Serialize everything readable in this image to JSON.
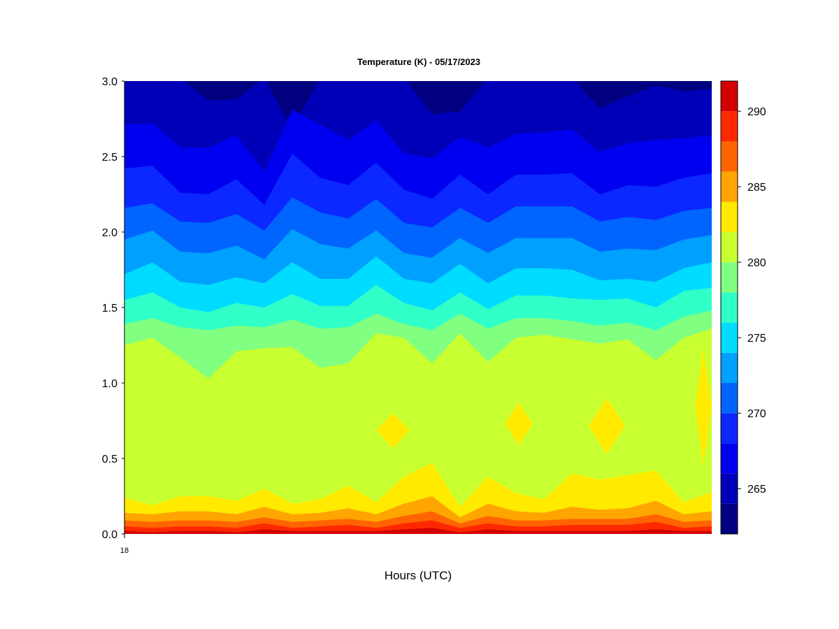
{
  "chart_data": {
    "type": "heatmap",
    "subtype": "filled-contour",
    "title": "Temperature (K) - 05/17/2023",
    "xlabel": "Hours (UTC)",
    "ylabel": "",
    "x_tick_labels": [
      "18"
    ],
    "y_ticks": [
      0.0,
      0.5,
      1.0,
      1.5,
      2.0,
      2.5,
      3.0
    ],
    "y_tick_labels": [
      "0.0",
      "0.5",
      "1.0",
      "1.5",
      "2.0",
      "2.5",
      "3.0"
    ],
    "ylim": [
      0.0,
      3.0
    ],
    "x_columns": 22,
    "colorbar": {
      "range": [
        262,
        292
      ],
      "ticks": [
        265,
        270,
        275,
        280,
        285,
        290
      ],
      "tick_labels": [
        "265",
        "270",
        "275",
        "280",
        "285",
        "290"
      ],
      "levels": [
        262,
        264,
        266,
        268,
        270,
        272,
        274,
        276,
        278,
        280,
        282,
        284,
        286,
        288,
        290,
        292
      ],
      "colors": [
        "#000080",
        "#0000B8",
        "#0000F0",
        "#0A28FF",
        "#0064FF",
        "#00A0FF",
        "#00DCFF",
        "#30FFC8",
        "#80FF80",
        "#C8FF30",
        "#FFEA00",
        "#FFA500",
        "#FF6400",
        "#FF2800",
        "#D20000",
        "#800000"
      ]
    },
    "contour_heights": {
      "264": [
        3.02,
        3.02,
        3.02,
        2.87,
        2.88,
        3.02,
        2.68,
        3.02,
        3.02,
        3.02,
        3.02,
        2.78,
        2.8,
        3.02,
        3.02,
        3.02,
        3.02,
        2.82,
        2.9,
        2.97,
        2.93,
        2.95
      ],
      "266": [
        2.71,
        2.72,
        2.56,
        2.56,
        2.64,
        2.4,
        2.81,
        2.71,
        2.61,
        2.74,
        2.52,
        2.49,
        2.63,
        2.56,
        2.65,
        2.66,
        2.68,
        2.53,
        2.59,
        2.61,
        2.62,
        2.64
      ],
      "268": [
        2.42,
        2.44,
        2.26,
        2.25,
        2.35,
        2.18,
        2.52,
        2.36,
        2.31,
        2.46,
        2.28,
        2.22,
        2.38,
        2.25,
        2.38,
        2.38,
        2.39,
        2.25,
        2.31,
        2.3,
        2.36,
        2.39
      ],
      "270": [
        2.16,
        2.19,
        2.07,
        2.06,
        2.12,
        2.01,
        2.23,
        2.13,
        2.09,
        2.22,
        2.06,
        2.03,
        2.16,
        2.06,
        2.17,
        2.17,
        2.17,
        2.07,
        2.1,
        2.08,
        2.14,
        2.16
      ],
      "272": [
        1.95,
        2.01,
        1.87,
        1.86,
        1.91,
        1.82,
        2.02,
        1.92,
        1.89,
        2.01,
        1.86,
        1.83,
        1.96,
        1.86,
        1.96,
        1.96,
        1.96,
        1.87,
        1.89,
        1.88,
        1.95,
        1.98
      ],
      "274": [
        1.72,
        1.8,
        1.67,
        1.65,
        1.7,
        1.66,
        1.8,
        1.69,
        1.69,
        1.84,
        1.69,
        1.66,
        1.79,
        1.66,
        1.76,
        1.76,
        1.75,
        1.68,
        1.69,
        1.67,
        1.76,
        1.8
      ],
      "276": [
        1.55,
        1.6,
        1.5,
        1.47,
        1.53,
        1.5,
        1.59,
        1.51,
        1.51,
        1.65,
        1.53,
        1.48,
        1.6,
        1.49,
        1.58,
        1.58,
        1.56,
        1.55,
        1.56,
        1.5,
        1.61,
        1.63
      ],
      "278": [
        1.39,
        1.43,
        1.37,
        1.35,
        1.38,
        1.37,
        1.42,
        1.36,
        1.37,
        1.46,
        1.39,
        1.35,
        1.46,
        1.36,
        1.43,
        1.43,
        1.41,
        1.38,
        1.4,
        1.35,
        1.44,
        1.48
      ],
      "280": [
        1.25,
        1.3,
        1.17,
        1.03,
        1.21,
        1.23,
        1.24,
        1.1,
        1.13,
        1.33,
        1.3,
        1.13,
        1.33,
        1.14,
        1.3,
        1.32,
        1.29,
        1.26,
        1.29,
        1.15,
        1.3,
        1.36
      ],
      "282": [
        0.24,
        0.19,
        0.25,
        0.25,
        0.22,
        0.3,
        0.2,
        0.23,
        0.32,
        0.21,
        0.38,
        0.47,
        0.18,
        0.38,
        0.27,
        0.23,
        0.4,
        0.36,
        0.39,
        0.42,
        0.21,
        0.28
      ],
      "284": [
        0.14,
        0.13,
        0.15,
        0.15,
        0.13,
        0.18,
        0.13,
        0.14,
        0.17,
        0.13,
        0.2,
        0.25,
        0.11,
        0.2,
        0.15,
        0.14,
        0.18,
        0.16,
        0.17,
        0.22,
        0.13,
        0.15
      ],
      "286": [
        0.09,
        0.08,
        0.09,
        0.09,
        0.08,
        0.11,
        0.08,
        0.09,
        0.1,
        0.08,
        0.12,
        0.15,
        0.07,
        0.12,
        0.09,
        0.09,
        0.1,
        0.1,
        0.1,
        0.13,
        0.08,
        0.09
      ],
      "288": [
        0.05,
        0.04,
        0.05,
        0.05,
        0.04,
        0.07,
        0.04,
        0.05,
        0.06,
        0.04,
        0.07,
        0.09,
        0.04,
        0.07,
        0.05,
        0.05,
        0.06,
        0.06,
        0.06,
        0.08,
        0.04,
        0.05
      ],
      "290": [
        0.02,
        0.01,
        0.02,
        0.02,
        0.01,
        0.03,
        0.02,
        0.02,
        0.02,
        0.02,
        0.03,
        0.04,
        0.01,
        0.03,
        0.02,
        0.02,
        0.02,
        0.02,
        0.02,
        0.03,
        0.02,
        0.02
      ]
    },
    "warm_patches_282_284": [
      {
        "x": [
          9,
          10.2
        ],
        "y": [
          0.57,
          0.8
        ]
      },
      {
        "x": [
          13.6,
          14.6
        ],
        "y": [
          0.59,
          0.87
        ]
      },
      {
        "x": [
          16.6,
          17.9
        ],
        "y": [
          0.53,
          0.9
        ]
      },
      {
        "x": [
          20.4,
          21
        ],
        "y": [
          0.45,
          1.23
        ]
      }
    ]
  }
}
